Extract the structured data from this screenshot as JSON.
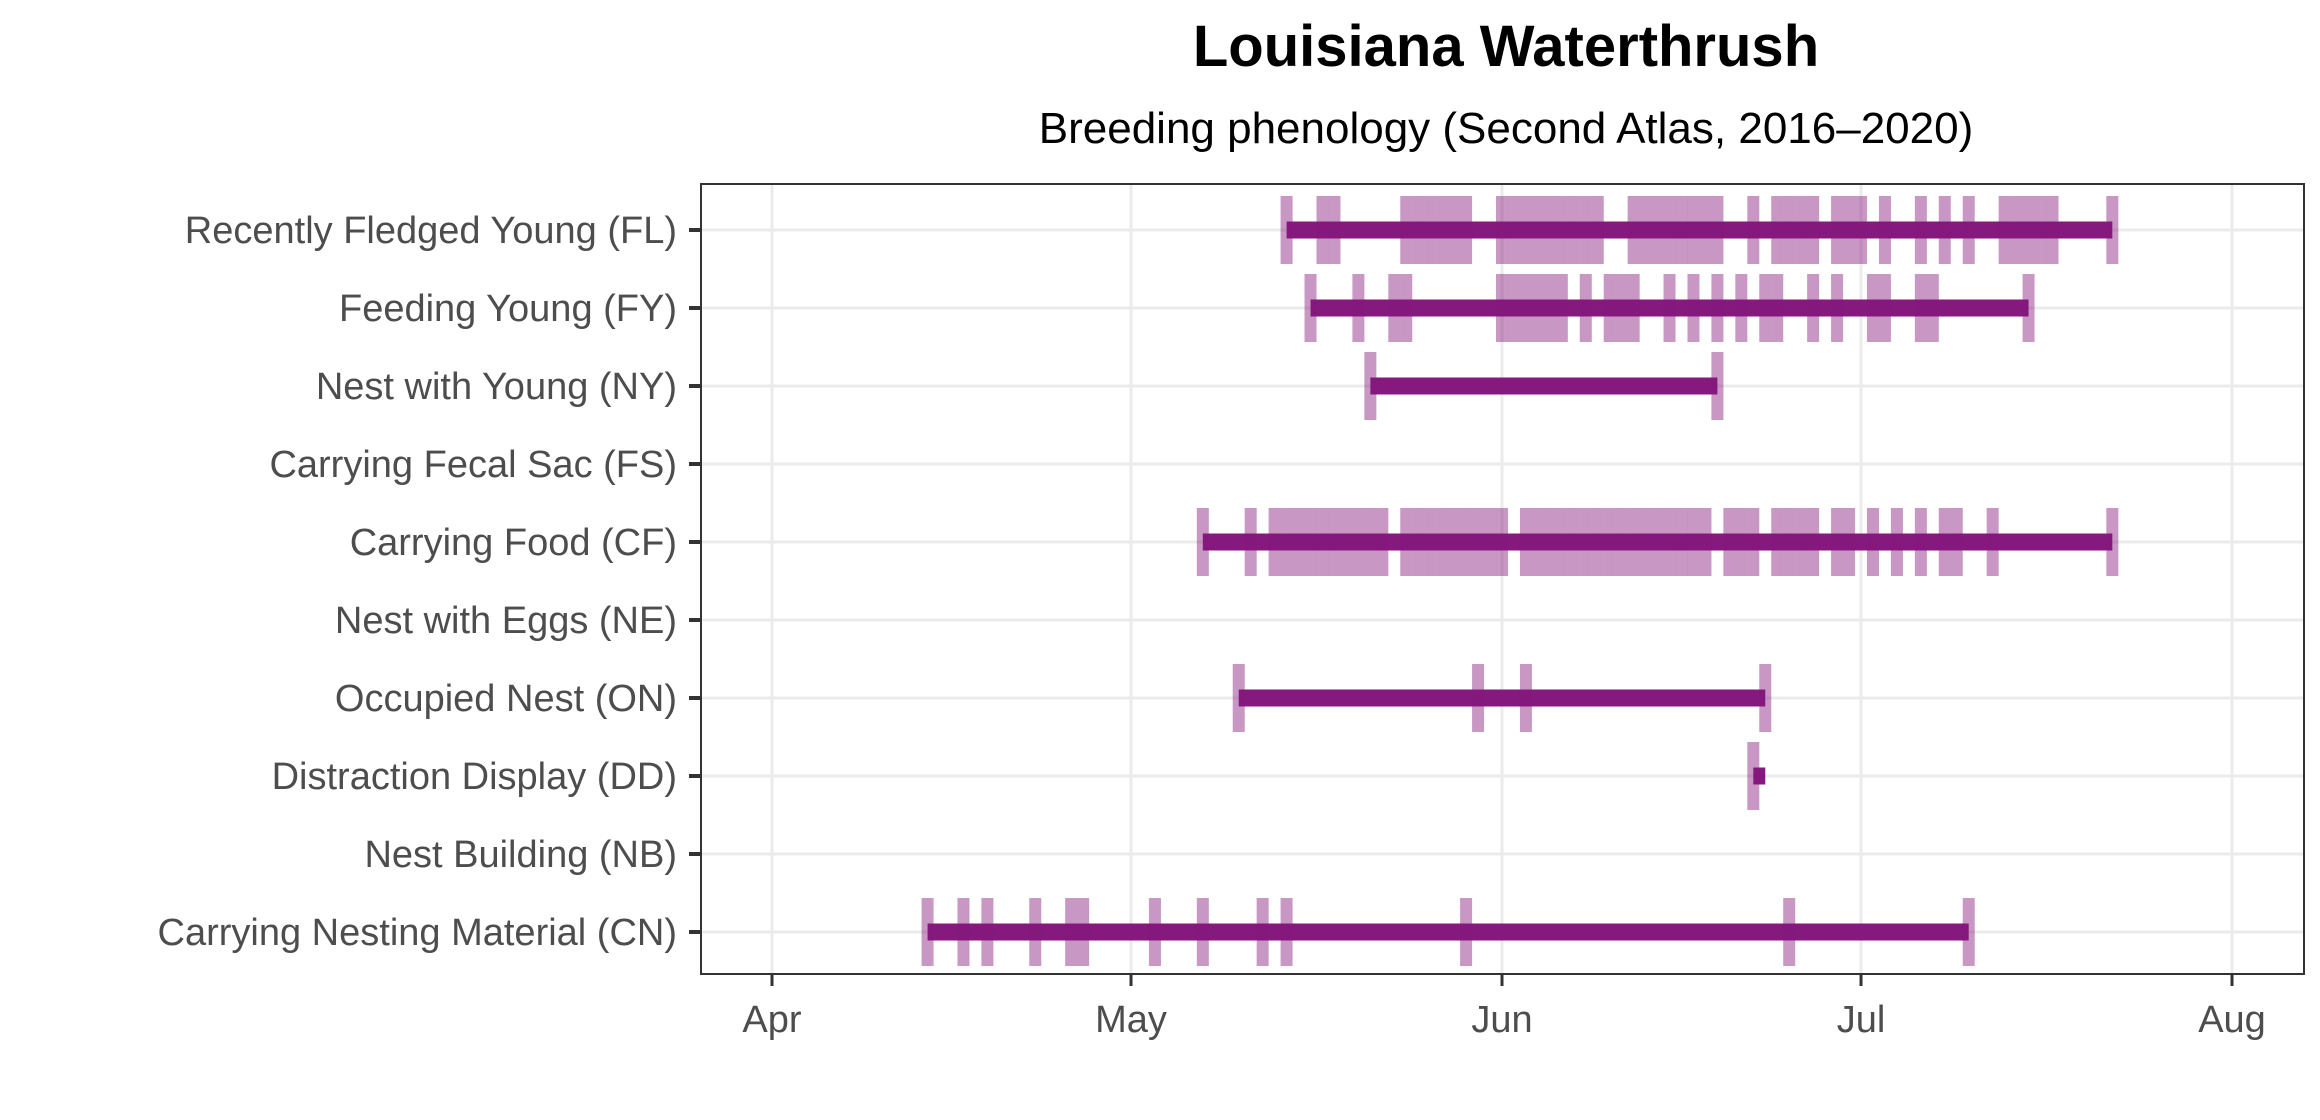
{
  "chart_data": {
    "type": "phenology-timeline",
    "title": "Louisiana Waterthrush",
    "subtitle": "Breeding phenology (Second Atlas, 2016–2020)",
    "xlabel": "",
    "ylabel": "",
    "x_unit": "day of year",
    "xlim": [
      86,
      218
    ],
    "x_ticks": [
      {
        "label": "Apr",
        "day": 91
      },
      {
        "label": "May",
        "day": 121
      },
      {
        "label": "Jun",
        "day": 152
      },
      {
        "label": "Jul",
        "day": 182
      },
      {
        "label": "Aug",
        "day": 213
      }
    ],
    "colors": {
      "line": "#86197d",
      "tick": "#86197d",
      "grid": "#ebebeb",
      "axis": "#333333",
      "text": "#4d4d4d"
    },
    "series": [
      {
        "name": "Recently Fledged Young (FL)",
        "start": 134,
        "end": 203,
        "obs": [
          134,
          137,
          138,
          144,
          145,
          146,
          147,
          148,
          149,
          152,
          153,
          154,
          155,
          156,
          157,
          158,
          159,
          160,
          163,
          164,
          165,
          166,
          167,
          168,
          169,
          170,
          173,
          175,
          176,
          177,
          178,
          180,
          181,
          182,
          184,
          187,
          189,
          191,
          194,
          195,
          196,
          197,
          198,
          203
        ]
      },
      {
        "name": "Feeding Young (FY)",
        "start": 136,
        "end": 196,
        "obs": [
          136,
          140,
          143,
          144,
          152,
          153,
          154,
          155,
          156,
          157,
          159,
          161,
          162,
          163,
          166,
          168,
          170,
          172,
          174,
          175,
          178,
          180,
          183,
          184,
          187,
          188,
          196
        ]
      },
      {
        "name": "Nest with Young (NY)",
        "start": 141,
        "end": 170,
        "obs": [
          141,
          170
        ]
      },
      {
        "name": "Carrying Fecal Sac (FS)",
        "obs": []
      },
      {
        "name": "Carrying Food (CF)",
        "start": 127,
        "end": 203,
        "obs": [
          127,
          131,
          133,
          134,
          135,
          136,
          137,
          138,
          139,
          140,
          141,
          142,
          144,
          145,
          146,
          147,
          148,
          149,
          150,
          151,
          152,
          154,
          155,
          156,
          157,
          158,
          159,
          160,
          161,
          162,
          163,
          164,
          165,
          166,
          167,
          168,
          169,
          171,
          172,
          173,
          175,
          176,
          177,
          178,
          180,
          181,
          183,
          185,
          187,
          189,
          190,
          193,
          203
        ]
      },
      {
        "name": "Nest with Eggs (NE)",
        "obs": []
      },
      {
        "name": "Occupied Nest (ON)",
        "start": 130,
        "end": 174,
        "obs": [
          130,
          150,
          154,
          174
        ]
      },
      {
        "name": "Distraction Display (DD)",
        "start": 173,
        "end": 174,
        "obs": [
          173
        ]
      },
      {
        "name": "Nest Building (NB)",
        "obs": []
      },
      {
        "name": "Carrying Nesting Material (CN)",
        "start": 104,
        "end": 191,
        "obs": [
          104,
          107,
          109,
          113,
          116,
          117,
          123,
          127,
          132,
          134,
          149,
          176,
          191
        ]
      }
    ]
  }
}
